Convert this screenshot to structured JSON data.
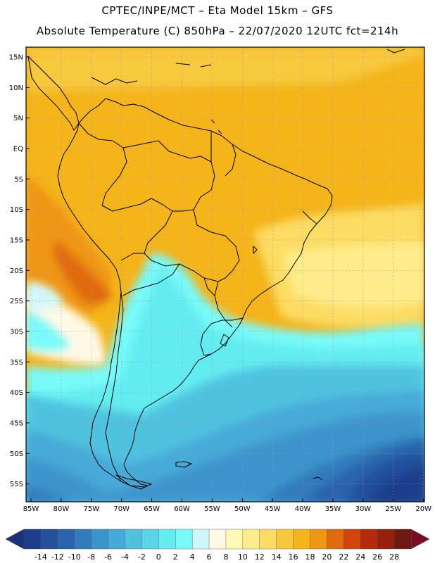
{
  "header": {
    "line1": "CPTEC/INPE/MCT –  Eta Model 15km – GFS",
    "line2": "Absolute Temperature (C) 850hPa – 22/07/2020 12UTC fct=214h"
  },
  "map": {
    "lat_labels": [
      "15N",
      "10N",
      "5N",
      "EQ",
      "5S",
      "10S",
      "15S",
      "20S",
      "25S",
      "30S",
      "35S",
      "40S",
      "45S",
      "50S",
      "55S"
    ],
    "lon_labels": [
      "85W",
      "80W",
      "75W",
      "70W",
      "65W",
      "60W",
      "55W",
      "50W",
      "45W",
      "40W",
      "35W",
      "30W",
      "25W",
      "20W"
    ]
  },
  "colorbar": {
    "labels": [
      "-14",
      "-12",
      "-10",
      "-8",
      "-6",
      "-4",
      "-2",
      "0",
      "2",
      "4",
      "6",
      "8",
      "10",
      "12",
      "14",
      "16",
      "18",
      "20",
      "22",
      "24",
      "26",
      "28"
    ],
    "colors": [
      "#1e3c8c",
      "#24509c",
      "#2a64ac",
      "#327cbc",
      "#3c94cc",
      "#46aad8",
      "#50c2e0",
      "#5ad6e8",
      "#64ecf0",
      "#78fafa",
      "#d2f7fa",
      "#fff9e6",
      "#fffab4",
      "#ffec8c",
      "#fcdc64",
      "#f8c83c",
      "#f4b41a",
      "#f09616",
      "#e06a0e",
      "#d0460a",
      "#b42a0a",
      "#96200e",
      "#6e1a12"
    ],
    "low_arrow_color": "#1b2f7a",
    "high_arrow_color": "#7a0c2a"
  }
}
